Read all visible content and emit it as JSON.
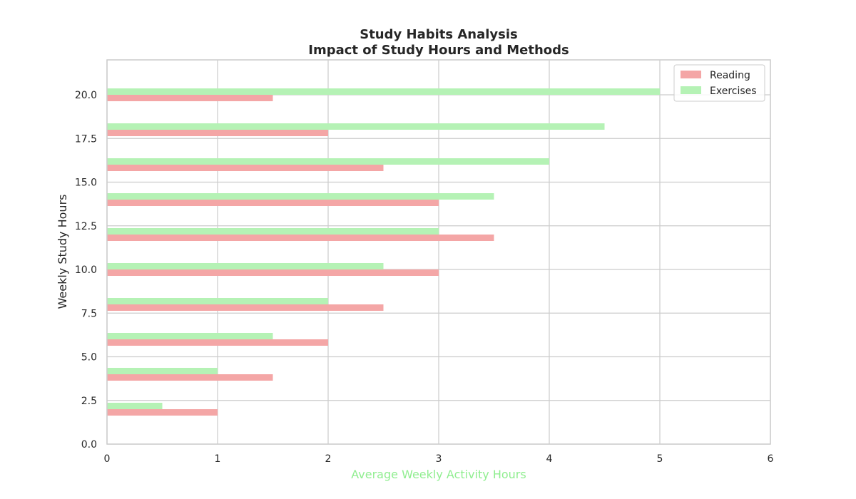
{
  "chart_data": {
    "type": "bar",
    "orientation": "horizontal",
    "title": "Study Habits Analysis",
    "subtitle": "Impact of Study Hours and Methods",
    "xlabel": "Average Weekly Activity Hours",
    "ylabel": "Weekly Study Hours",
    "categories": [
      2,
      4,
      6,
      8,
      10,
      12,
      14,
      16,
      18,
      20
    ],
    "series": [
      {
        "name": "Reading",
        "values": [
          1,
          1.5,
          2,
          2.5,
          3,
          3.5,
          3,
          2.5,
          2,
          1.5
        ],
        "color": "#f4a6a6"
      },
      {
        "name": "Exercises",
        "values": [
          0.5,
          1,
          1.5,
          2,
          2.5,
          3,
          3.5,
          4,
          4.5,
          5
        ],
        "color": "#b5f2b5"
      }
    ],
    "xlim": [
      0,
      6
    ],
    "ylim": [
      0,
      22
    ],
    "xticks": [
      "0",
      "1",
      "2",
      "3",
      "4",
      "5",
      "6"
    ],
    "yticks": [
      "0.0",
      "2.5",
      "5.0",
      "7.5",
      "10.0",
      "12.5",
      "15.0",
      "17.5",
      "20.0"
    ],
    "xlabel_color": "#90ee90",
    "grid": true,
    "legend_position": "top-right"
  }
}
